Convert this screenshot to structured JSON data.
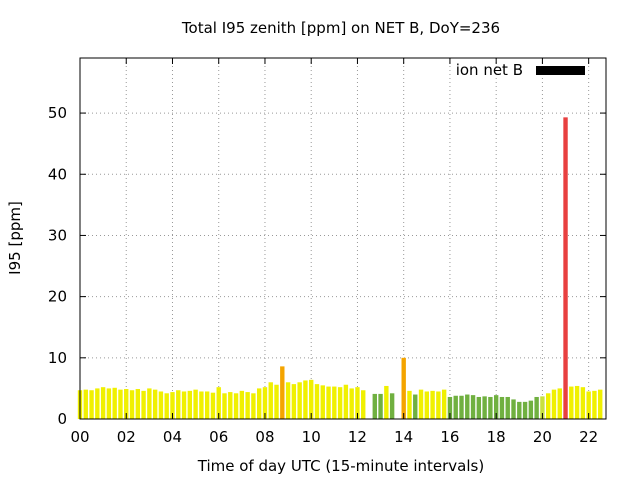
{
  "chart_data": {
    "type": "bar",
    "title": "Total I95 zenith [ppm] on NET B, DoY=236",
    "xlabel": "Time of day UTC (15-minute intervals)",
    "ylabel": "I95 [ppm]",
    "xlim": [
      0,
      22.75
    ],
    "ylim": [
      0,
      59
    ],
    "x_ticks": [
      "00",
      "02",
      "04",
      "06",
      "08",
      "10",
      "12",
      "14",
      "16",
      "18",
      "20",
      "22"
    ],
    "y_ticks": [
      "0",
      "10",
      "20",
      "30",
      "40",
      "50"
    ],
    "grid": true,
    "legend": {
      "label": "ion net B",
      "color": "#000000",
      "placement": "top-right"
    },
    "bar_width_hours": 0.19,
    "colors": {
      "yellow": "#f0f000",
      "yellowgreen": "#c8e040",
      "green": "#70b040",
      "orange": "#f4a400",
      "red": "#e84040"
    },
    "bars": [
      {
        "x": 0.0,
        "v": 4.7,
        "c": "yellow"
      },
      {
        "x": 0.25,
        "v": 4.8,
        "c": "yellow"
      },
      {
        "x": 0.5,
        "v": 4.7,
        "c": "yellow"
      },
      {
        "x": 0.75,
        "v": 5.0,
        "c": "yellow"
      },
      {
        "x": 1.0,
        "v": 5.2,
        "c": "yellow"
      },
      {
        "x": 1.25,
        "v": 5.0,
        "c": "yellow"
      },
      {
        "x": 1.5,
        "v": 5.1,
        "c": "yellow"
      },
      {
        "x": 1.75,
        "v": 4.8,
        "c": "yellow"
      },
      {
        "x": 2.0,
        "v": 4.9,
        "c": "yellow"
      },
      {
        "x": 2.25,
        "v": 4.7,
        "c": "yellow"
      },
      {
        "x": 2.5,
        "v": 4.9,
        "c": "yellow"
      },
      {
        "x": 2.75,
        "v": 4.6,
        "c": "yellow"
      },
      {
        "x": 3.0,
        "v": 5.0,
        "c": "yellow"
      },
      {
        "x": 3.25,
        "v": 4.8,
        "c": "yellow"
      },
      {
        "x": 3.5,
        "v": 4.5,
        "c": "yellow"
      },
      {
        "x": 3.75,
        "v": 4.2,
        "c": "yellow"
      },
      {
        "x": 4.0,
        "v": 4.4,
        "c": "yellow"
      },
      {
        "x": 4.25,
        "v": 4.7,
        "c": "yellow"
      },
      {
        "x": 4.5,
        "v": 4.5,
        "c": "yellow"
      },
      {
        "x": 4.75,
        "v": 4.6,
        "c": "yellow"
      },
      {
        "x": 5.0,
        "v": 4.8,
        "c": "yellow"
      },
      {
        "x": 5.25,
        "v": 4.5,
        "c": "yellow"
      },
      {
        "x": 5.5,
        "v": 4.5,
        "c": "yellow"
      },
      {
        "x": 5.75,
        "v": 4.3,
        "c": "yellow"
      },
      {
        "x": 6.0,
        "v": 5.2,
        "c": "yellow"
      },
      {
        "x": 6.25,
        "v": 4.2,
        "c": "yellow"
      },
      {
        "x": 6.5,
        "v": 4.4,
        "c": "yellow"
      },
      {
        "x": 6.75,
        "v": 4.2,
        "c": "yellow"
      },
      {
        "x": 7.0,
        "v": 4.6,
        "c": "yellow"
      },
      {
        "x": 7.25,
        "v": 4.4,
        "c": "yellow"
      },
      {
        "x": 7.5,
        "v": 4.2,
        "c": "yellow"
      },
      {
        "x": 7.75,
        "v": 5.0,
        "c": "yellow"
      },
      {
        "x": 8.0,
        "v": 5.2,
        "c": "yellow"
      },
      {
        "x": 8.25,
        "v": 6.0,
        "c": "yellow"
      },
      {
        "x": 8.5,
        "v": 5.6,
        "c": "yellow"
      },
      {
        "x": 8.75,
        "v": 8.6,
        "c": "orange"
      },
      {
        "x": 9.0,
        "v": 6.0,
        "c": "yellow"
      },
      {
        "x": 9.25,
        "v": 5.7,
        "c": "yellow"
      },
      {
        "x": 9.5,
        "v": 6.0,
        "c": "yellow"
      },
      {
        "x": 9.75,
        "v": 6.3,
        "c": "yellow"
      },
      {
        "x": 10.0,
        "v": 6.4,
        "c": "yellow"
      },
      {
        "x": 10.25,
        "v": 5.7,
        "c": "yellow"
      },
      {
        "x": 10.5,
        "v": 5.5,
        "c": "yellow"
      },
      {
        "x": 10.75,
        "v": 5.3,
        "c": "yellow"
      },
      {
        "x": 11.0,
        "v": 5.3,
        "c": "yellow"
      },
      {
        "x": 11.25,
        "v": 5.2,
        "c": "yellow"
      },
      {
        "x": 11.5,
        "v": 5.6,
        "c": "yellow"
      },
      {
        "x": 11.75,
        "v": 5.0,
        "c": "yellow"
      },
      {
        "x": 12.0,
        "v": 5.2,
        "c": "yellow"
      },
      {
        "x": 12.25,
        "v": 4.7,
        "c": "yellow"
      },
      {
        "x": 12.75,
        "v": 4.1,
        "c": "green"
      },
      {
        "x": 13.0,
        "v": 4.1,
        "c": "green"
      },
      {
        "x": 13.25,
        "v": 5.4,
        "c": "yellow"
      },
      {
        "x": 13.5,
        "v": 4.2,
        "c": "green"
      },
      {
        "x": 14.0,
        "v": 10.0,
        "c": "orange"
      },
      {
        "x": 14.25,
        "v": 4.6,
        "c": "yellow"
      },
      {
        "x": 14.5,
        "v": 4.0,
        "c": "green"
      },
      {
        "x": 14.75,
        "v": 4.8,
        "c": "yellow"
      },
      {
        "x": 15.0,
        "v": 4.5,
        "c": "yellow"
      },
      {
        "x": 15.25,
        "v": 4.6,
        "c": "yellow"
      },
      {
        "x": 15.5,
        "v": 4.5,
        "c": "yellow"
      },
      {
        "x": 15.75,
        "v": 4.8,
        "c": "yellow"
      },
      {
        "x": 16.0,
        "v": 3.6,
        "c": "green"
      },
      {
        "x": 16.25,
        "v": 3.8,
        "c": "green"
      },
      {
        "x": 16.5,
        "v": 3.8,
        "c": "green"
      },
      {
        "x": 16.75,
        "v": 4.0,
        "c": "green"
      },
      {
        "x": 17.0,
        "v": 3.9,
        "c": "green"
      },
      {
        "x": 17.25,
        "v": 3.6,
        "c": "green"
      },
      {
        "x": 17.5,
        "v": 3.7,
        "c": "green"
      },
      {
        "x": 17.75,
        "v": 3.6,
        "c": "green"
      },
      {
        "x": 18.0,
        "v": 3.9,
        "c": "green"
      },
      {
        "x": 18.25,
        "v": 3.6,
        "c": "green"
      },
      {
        "x": 18.5,
        "v": 3.6,
        "c": "green"
      },
      {
        "x": 18.75,
        "v": 3.2,
        "c": "green"
      },
      {
        "x": 19.0,
        "v": 2.8,
        "c": "green"
      },
      {
        "x": 19.25,
        "v": 2.8,
        "c": "green"
      },
      {
        "x": 19.5,
        "v": 3.0,
        "c": "green"
      },
      {
        "x": 19.75,
        "v": 3.6,
        "c": "green"
      },
      {
        "x": 20.0,
        "v": 3.7,
        "c": "yellowgreen"
      },
      {
        "x": 20.25,
        "v": 4.2,
        "c": "yellow"
      },
      {
        "x": 20.5,
        "v": 4.8,
        "c": "yellow"
      },
      {
        "x": 20.75,
        "v": 5.0,
        "c": "yellow"
      },
      {
        "x": 21.0,
        "v": 49.3,
        "c": "red"
      },
      {
        "x": 21.25,
        "v": 5.3,
        "c": "yellow"
      },
      {
        "x": 21.5,
        "v": 5.4,
        "c": "yellow"
      },
      {
        "x": 21.75,
        "v": 5.2,
        "c": "yellow"
      },
      {
        "x": 22.0,
        "v": 4.5,
        "c": "yellow"
      },
      {
        "x": 22.25,
        "v": 4.6,
        "c": "yellow"
      },
      {
        "x": 22.5,
        "v": 4.8,
        "c": "yellow"
      }
    ]
  }
}
